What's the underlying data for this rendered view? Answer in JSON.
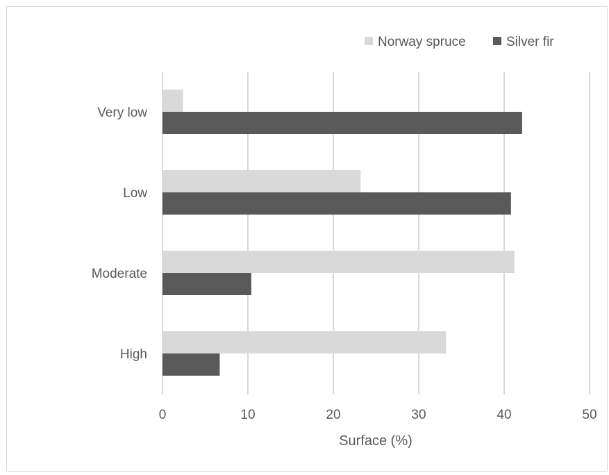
{
  "chart_data": {
    "type": "bar",
    "orientation": "horizontal",
    "categories": [
      "Very low",
      "Low",
      "Moderate",
      "High"
    ],
    "series": [
      {
        "name": "Norway spruce",
        "values": [
          2.4,
          23.2,
          41.2,
          33.2
        ],
        "color": "#d9d9d9"
      },
      {
        "name": "Silver fir",
        "values": [
          42.1,
          40.8,
          10.4,
          6.7
        ],
        "color": "#595959"
      }
    ],
    "xlabel": "Surface (%)",
    "ylabel": "",
    "xlim": [
      0,
      50
    ],
    "xticks": [
      0,
      10,
      20,
      30,
      40,
      50
    ],
    "grid": "vertical",
    "legend": "top-right",
    "title": ""
  },
  "colors": {
    "gridline": "#d9d9d9",
    "text": "#595959",
    "border": "#d9d9d9"
  }
}
